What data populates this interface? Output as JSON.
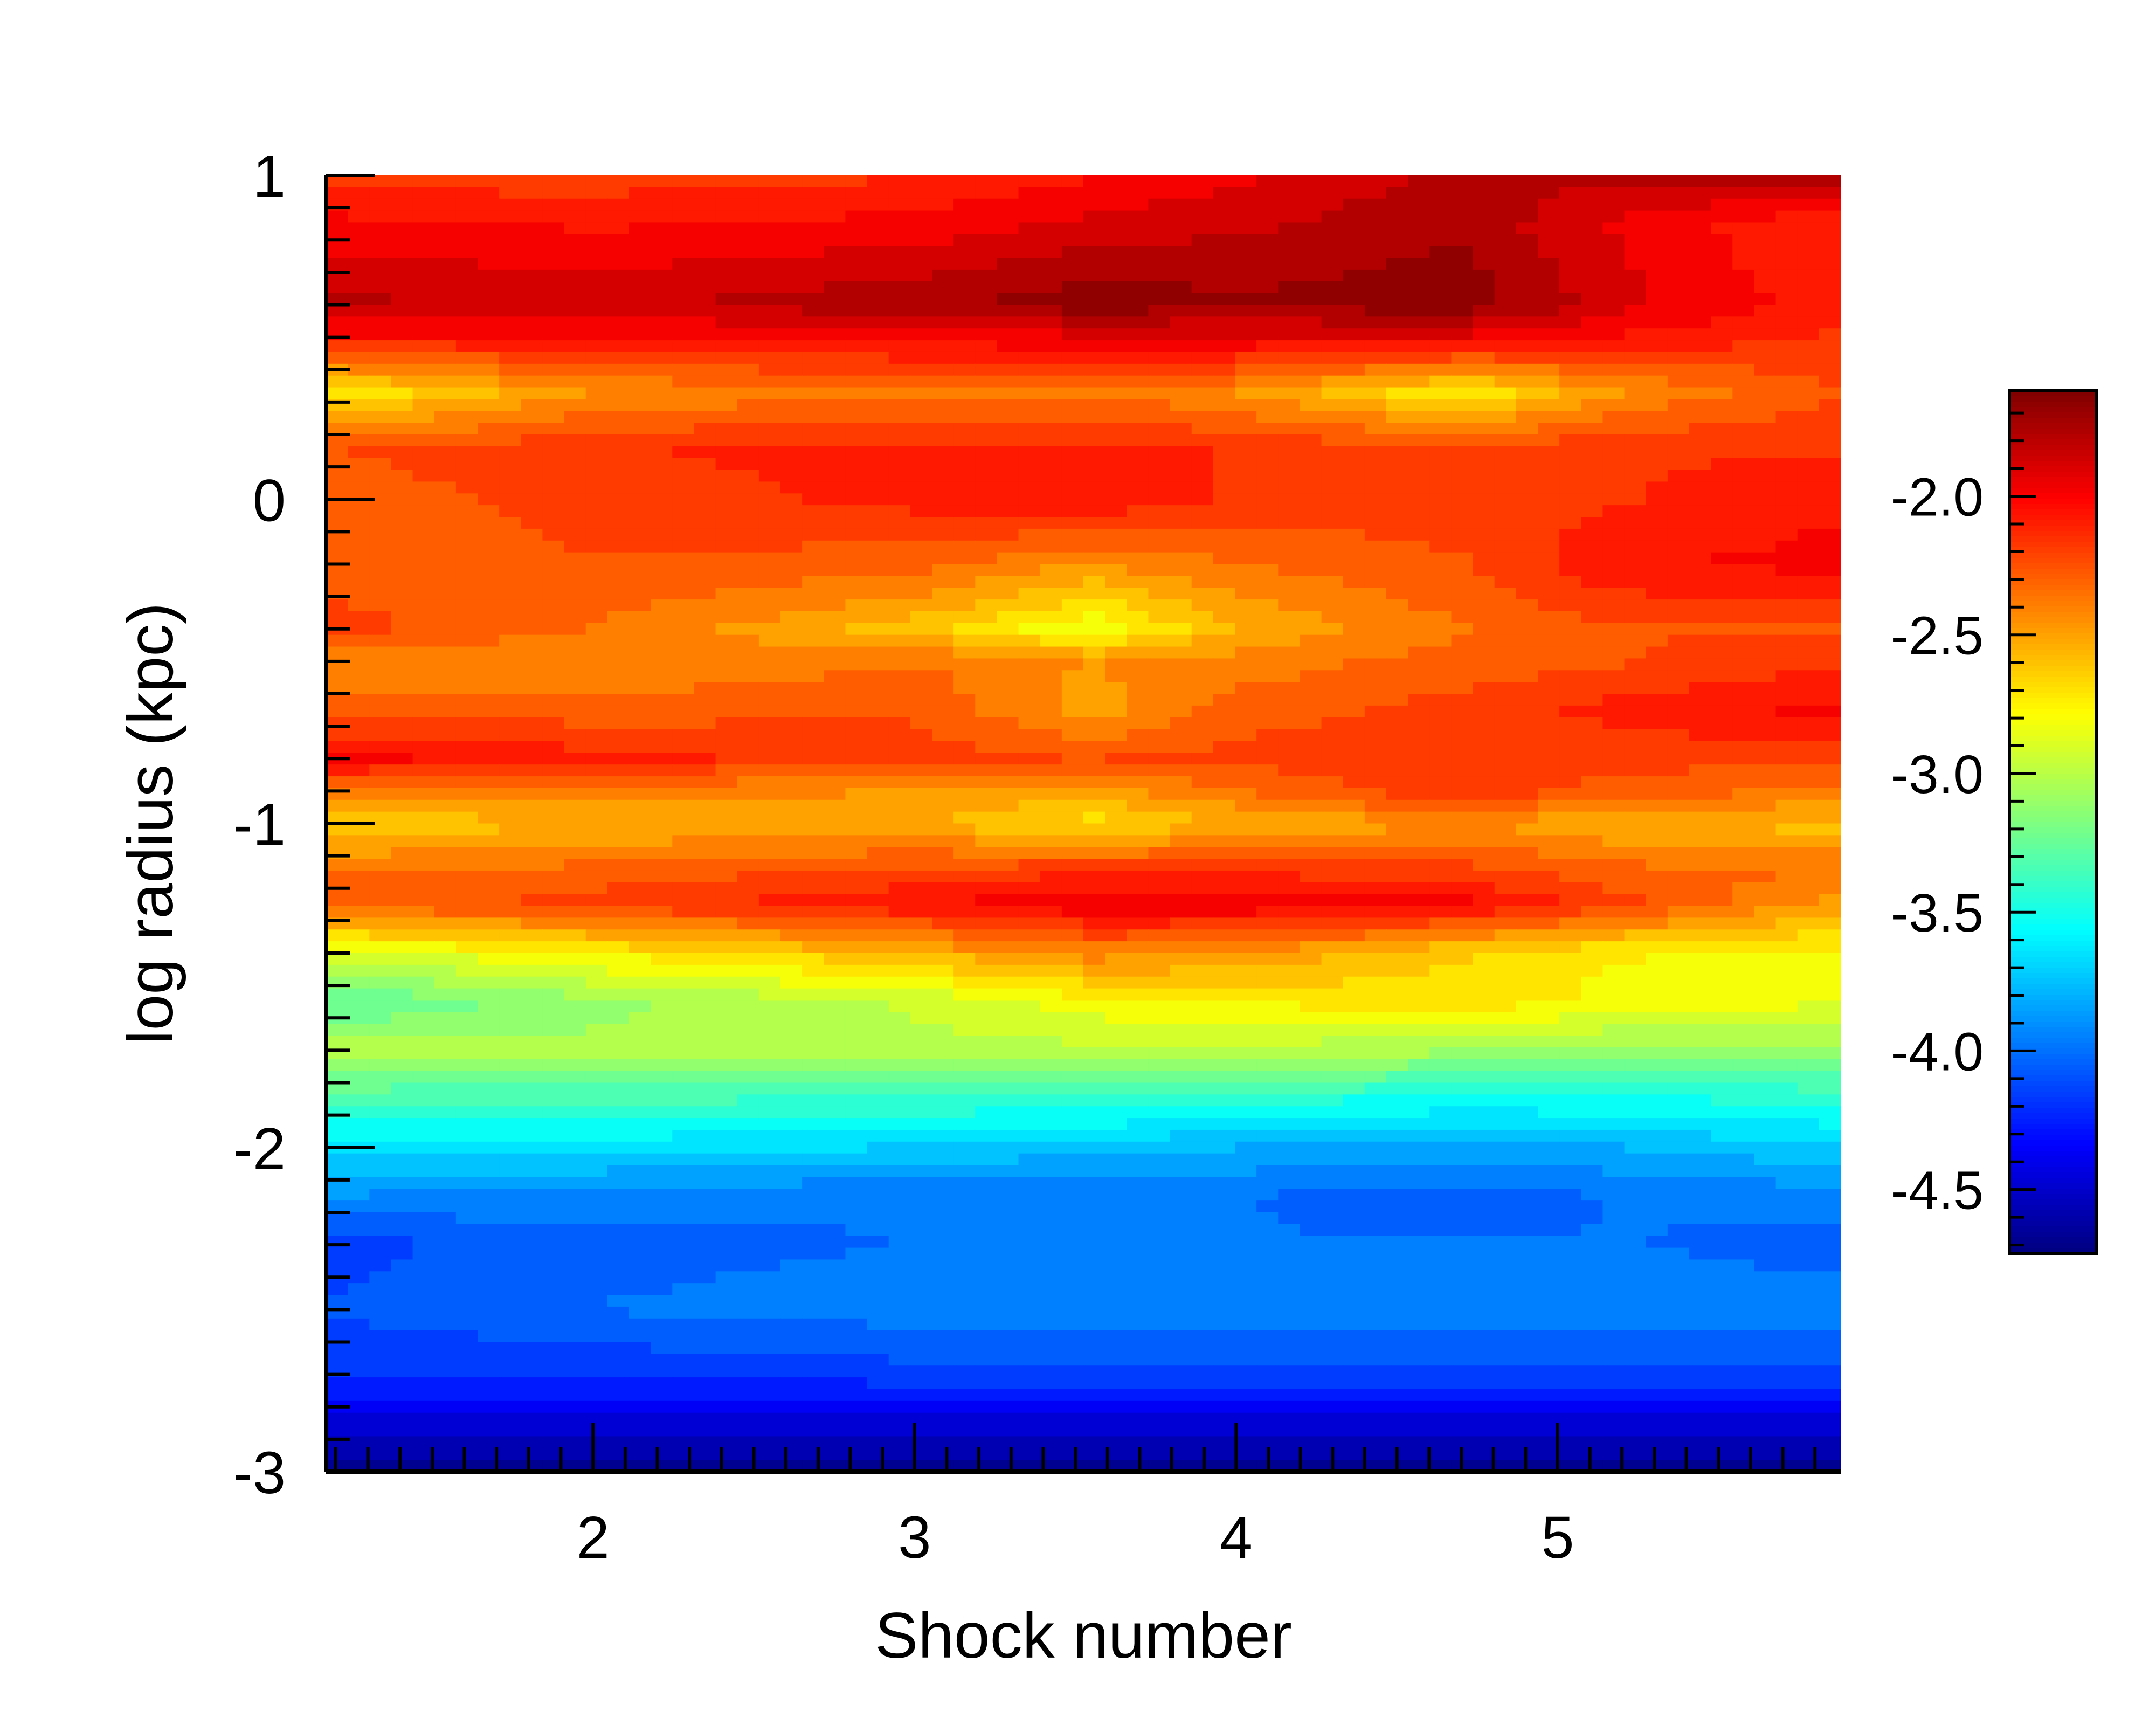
{
  "chart_data": {
    "type": "heatmap",
    "subtype": "filled-contour",
    "title": "",
    "xlabel": "Shock number",
    "ylabel": "log radius (kpc)",
    "xlim": [
      1.17,
      5.88
    ],
    "ylim": [
      -3,
      1
    ],
    "x_ticks": [
      2,
      3,
      4,
      5
    ],
    "x_tick_labels": [
      "2",
      "3",
      "4",
      "5"
    ],
    "y_ticks": [
      1,
      0,
      -1,
      -2,
      -3
    ],
    "y_tick_labels": [
      "1",
      "0",
      "-1",
      "-2",
      "-3"
    ],
    "colorbar": {
      "range": [
        -4.73,
        -1.62
      ],
      "ticks": [
        -2.0,
        -2.5,
        -3.0,
        -3.5,
        -4.0,
        -4.5
      ],
      "tick_labels": [
        "-2.0",
        "-2.5",
        "-3.0",
        "-3.5",
        "-4.0",
        "-4.5"
      ],
      "colormap": "jet"
    },
    "x": [
      1.17,
      2.0,
      3.0,
      3.55,
      4.0,
      4.7,
      5.2,
      5.88
    ],
    "y": [
      1.0,
      0.85,
      0.6,
      0.5,
      0.33,
      0.15,
      0.0,
      -0.2,
      -0.4,
      -0.5,
      -0.65,
      -0.8,
      -0.9,
      -1.0,
      -1.15,
      -1.25,
      -1.4,
      -1.55,
      -1.7,
      -1.85,
      -2.0,
      -2.15,
      -2.3,
      -2.5,
      -2.7,
      -2.85,
      -3.0
    ],
    "z": [
      [
        -2.2,
        -2.2,
        -2.15,
        -2.05,
        -1.95,
        -1.8,
        -1.8,
        -1.75
      ],
      [
        -2.0,
        -2.05,
        -2.0,
        -1.9,
        -1.85,
        -1.75,
        -1.95,
        -2.15
      ],
      [
        -1.8,
        -1.85,
        -1.75,
        -1.65,
        -1.7,
        -1.65,
        -1.9,
        -2.1
      ],
      [
        -2.05,
        -2.05,
        -2.0,
        -1.95,
        -1.95,
        -1.95,
        -2.05,
        -2.15
      ],
      [
        -2.75,
        -2.45,
        -2.35,
        -2.35,
        -2.45,
        -2.75,
        -2.45,
        -2.25
      ],
      [
        -2.25,
        -2.15,
        -2.1,
        -2.1,
        -2.15,
        -2.2,
        -2.15,
        -2.15
      ],
      [
        -2.3,
        -2.2,
        -2.1,
        -2.05,
        -2.15,
        -2.2,
        -2.15,
        -2.05
      ],
      [
        -2.3,
        -2.25,
        -2.3,
        -2.45,
        -2.35,
        -2.25,
        -2.05,
        -2.0
      ],
      [
        -2.2,
        -2.35,
        -2.6,
        -2.85,
        -2.55,
        -2.35,
        -2.25,
        -2.25
      ],
      [
        -2.4,
        -2.45,
        -2.35,
        -2.45,
        -2.4,
        -2.3,
        -2.25,
        -2.15
      ],
      [
        -2.3,
        -2.3,
        -2.25,
        -2.5,
        -2.3,
        -2.2,
        -2.1,
        -2.0
      ],
      [
        -2.0,
        -2.1,
        -2.2,
        -2.25,
        -2.2,
        -2.2,
        -2.2,
        -2.2
      ],
      [
        -2.35,
        -2.4,
        -2.45,
        -2.5,
        -2.35,
        -2.15,
        -2.3,
        -2.35
      ],
      [
        -2.65,
        -2.55,
        -2.55,
        -2.7,
        -2.55,
        -2.45,
        -2.55,
        -2.6
      ],
      [
        -2.35,
        -2.3,
        -2.2,
        -2.15,
        -2.15,
        -2.2,
        -2.3,
        -2.35
      ],
      [
        -2.3,
        -2.2,
        -2.05,
        -1.95,
        -1.95,
        -2.0,
        -2.2,
        -2.5
      ],
      [
        -2.9,
        -2.75,
        -2.55,
        -2.4,
        -2.45,
        -2.65,
        -2.75,
        -2.8
      ],
      [
        -3.3,
        -3.1,
        -2.95,
        -2.8,
        -2.75,
        -2.7,
        -2.8,
        -2.85
      ],
      [
        -3.0,
        -3.05,
        -3.0,
        -3.0,
        -3.0,
        -3.05,
        -3.1,
        -3.1
      ],
      [
        -3.35,
        -3.35,
        -3.4,
        -3.4,
        -3.45,
        -3.5,
        -3.5,
        -3.45
      ],
      [
        -3.65,
        -3.65,
        -3.7,
        -3.75,
        -3.8,
        -3.85,
        -3.8,
        -3.7
      ],
      [
        -3.9,
        -3.95,
        -4.0,
        -4.0,
        -4.0,
        -4.05,
        -4.0,
        -3.95
      ],
      [
        -4.15,
        -4.05,
        -4.0,
        -4.0,
        -4.0,
        -4.0,
        -4.0,
        -4.05
      ],
      [
        -4.1,
        -4.0,
        -3.95,
        -3.95,
        -3.95,
        -3.95,
        -3.95,
        -3.95
      ],
      [
        -4.2,
        -4.2,
        -4.15,
        -4.15,
        -4.15,
        -4.15,
        -4.15,
        -4.15
      ],
      [
        -4.45,
        -4.45,
        -4.45,
        -4.45,
        -4.45,
        -4.45,
        -4.45,
        -4.45
      ],
      [
        -4.7,
        -4.7,
        -4.7,
        -4.7,
        -4.7,
        -4.7,
        -4.7,
        -4.7
      ]
    ],
    "grid": false,
    "legend": "colorbar-right"
  }
}
